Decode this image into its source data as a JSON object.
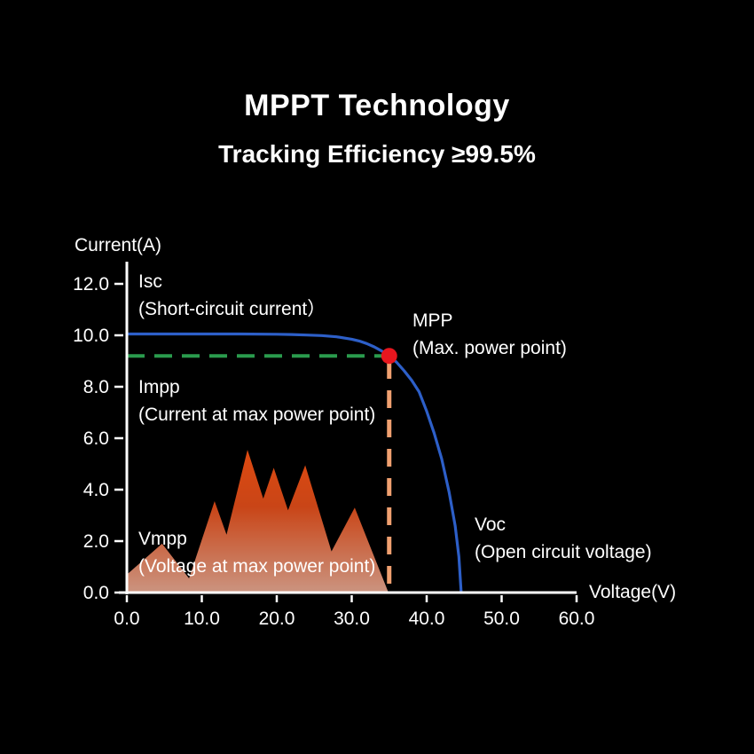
{
  "header": {
    "title": "MPPT Technology",
    "subtitle": "Tracking Efficiency ≥99.5%"
  },
  "chart_data": {
    "type": "line",
    "title": "Solar panel I-V curve with maximum power point",
    "xlabel": "Voltage(V)",
    "ylabel": "Current(A)",
    "xlim": [
      0,
      60
    ],
    "ylim": [
      0,
      12.8
    ],
    "grid": false,
    "x_ticks": [
      "0.0",
      "10.0",
      "20.0",
      "30.0",
      "40.0",
      "50.0",
      "60.0"
    ],
    "x_tick_values": [
      0,
      10,
      20,
      30,
      40,
      50,
      60
    ],
    "y_ticks": [
      "0.0",
      "2.0",
      "4.0",
      "6.0",
      "8.0",
      "10.0",
      "12.0"
    ],
    "y_tick_values": [
      0,
      2,
      4,
      6,
      8,
      10,
      12
    ],
    "axis_color": "#ffffff",
    "series": [
      {
        "name": "iv_curve",
        "color": "#2d5fc8",
        "points": [
          [
            0,
            10.05
          ],
          [
            5,
            10.05
          ],
          [
            10,
            10.05
          ],
          [
            15,
            10.05
          ],
          [
            20,
            10.04
          ],
          [
            22,
            10.03
          ],
          [
            24,
            10.01
          ],
          [
            26,
            9.99
          ],
          [
            28,
            9.94
          ],
          [
            30,
            9.85
          ],
          [
            31,
            9.78
          ],
          [
            32,
            9.68
          ],
          [
            33,
            9.55
          ],
          [
            34,
            9.39
          ],
          [
            35,
            9.2
          ],
          [
            36,
            8.95
          ],
          [
            37,
            8.62
          ],
          [
            38,
            8.25
          ],
          [
            39,
            7.8
          ],
          [
            40,
            7.05
          ],
          [
            41,
            6.2
          ],
          [
            42,
            5.2
          ],
          [
            43,
            3.9
          ],
          [
            43.8,
            2.6
          ],
          [
            44.3,
            1.4
          ],
          [
            44.6,
            0
          ]
        ]
      }
    ],
    "power_area": {
      "name": "power_mountain",
      "color_top": "#de4a10",
      "color_mid": "#c94517",
      "color_bottom": "#cb9480",
      "points": [
        [
          0,
          0.7
        ],
        [
          4.7,
          1.9
        ],
        [
          8.3,
          0.55
        ],
        [
          11.7,
          3.55
        ],
        [
          13.3,
          2.25
        ],
        [
          16.1,
          5.55
        ],
        [
          18.2,
          3.65
        ],
        [
          19.6,
          4.85
        ],
        [
          21.5,
          3.2
        ],
        [
          23.8,
          4.95
        ],
        [
          27.3,
          1.6
        ],
        [
          30.4,
          3.3
        ],
        [
          34.9,
          0
        ]
      ]
    },
    "mpp_point": {
      "x": 35,
      "y": 9.2,
      "color": "#e8161e",
      "radius": 9
    },
    "impp_line": {
      "y": 9.2,
      "x_from": 0,
      "x_to": 35,
      "color": "#2a9b4d",
      "style": "dashed"
    },
    "vmpp_line": {
      "x": 35,
      "y_from": 0,
      "y_to": 9.0,
      "color": "#f0a070",
      "style": "dashed"
    },
    "annotations": [
      {
        "id": "isc",
        "title": "Isc",
        "desc": "(Short-circuit current）"
      },
      {
        "id": "mpp",
        "title": "MPP",
        "desc": "(Max. power point)"
      },
      {
        "id": "impp",
        "title": "Impp",
        "desc": "(Current at max power point)"
      },
      {
        "id": "vmpp",
        "title": "Vmpp",
        "desc": "(Voltage at max power point)"
      },
      {
        "id": "voc",
        "title": "Voc",
        "desc": "(Open circuit voltage)"
      }
    ]
  }
}
